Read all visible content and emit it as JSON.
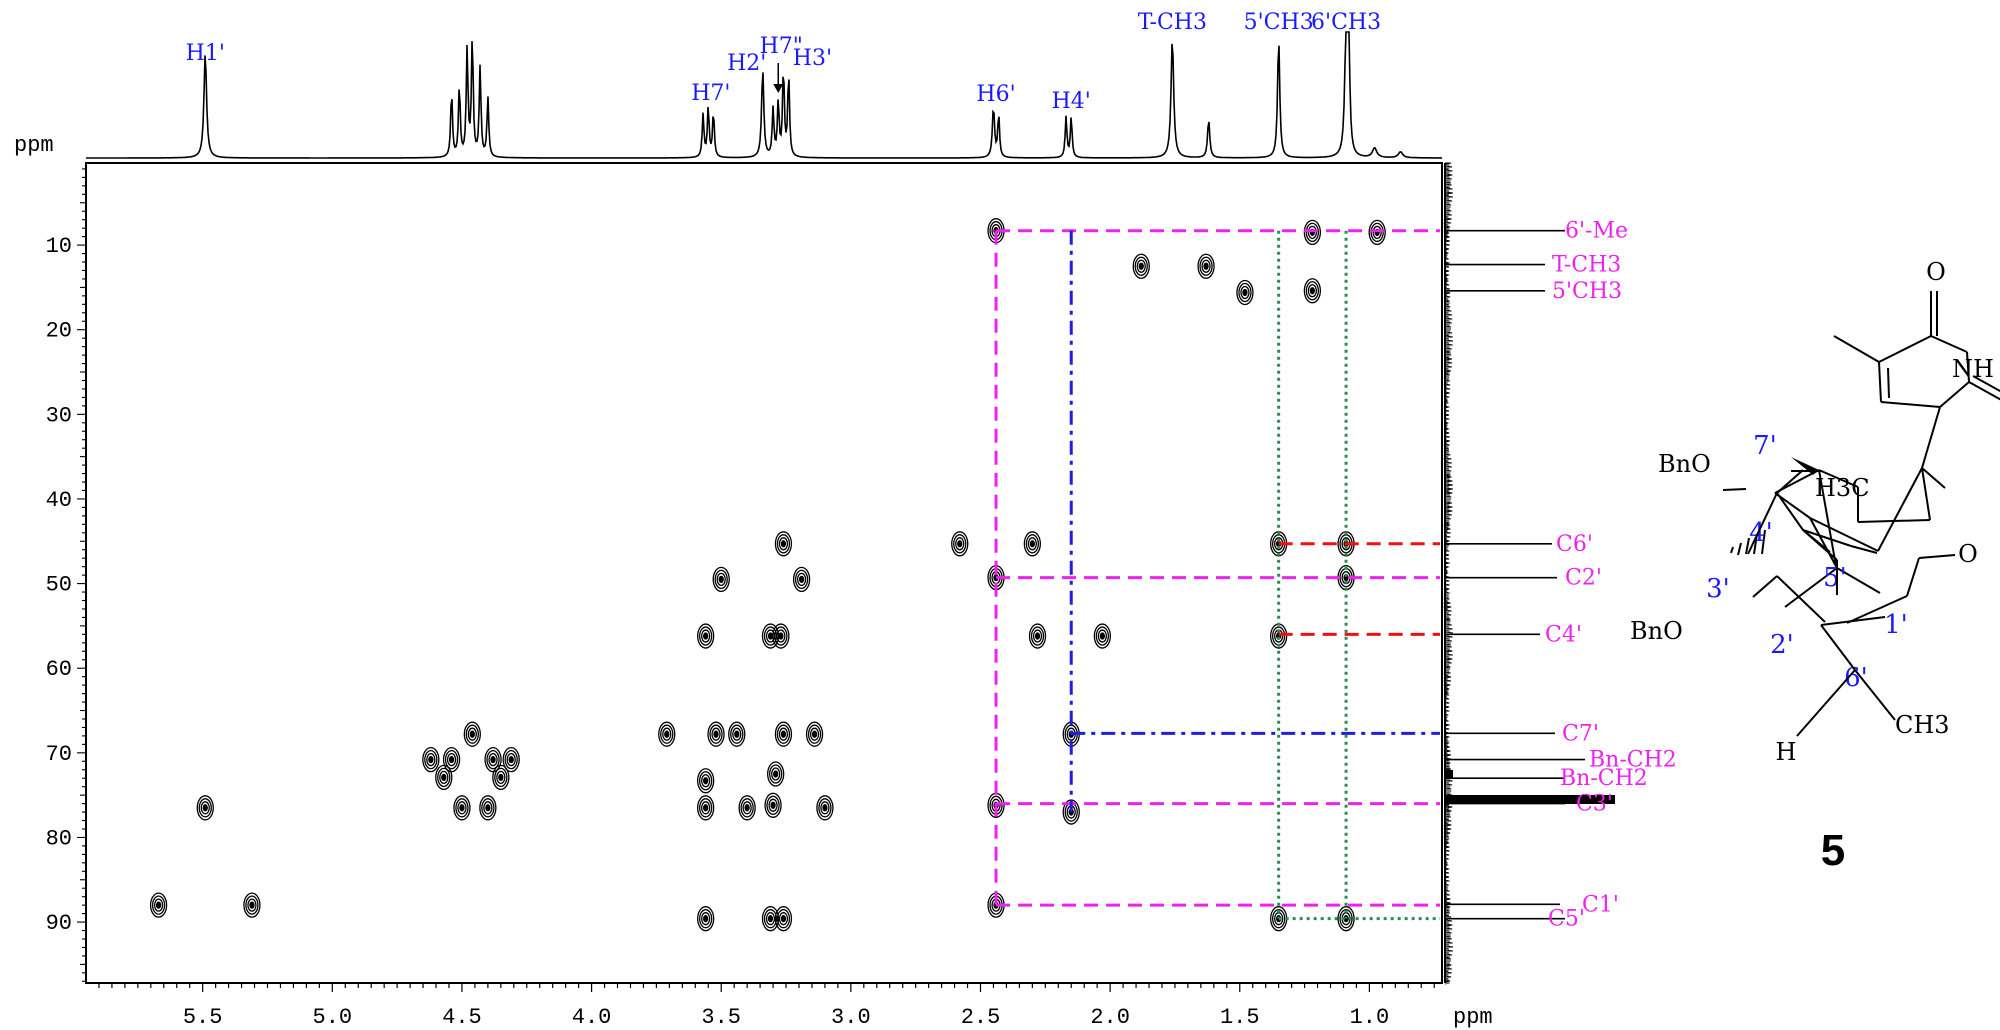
{
  "chart_data": {
    "type": "heatmap",
    "title": "",
    "x_axis": {
      "label": "ppm",
      "range": [
        5.95,
        0.72
      ],
      "reversed": true,
      "tick_labels": [
        "5.5",
        "5.0",
        "4.5",
        "4.0",
        "3.5",
        "3.0",
        "2.5",
        "2.0",
        "1.5",
        "1.0"
      ]
    },
    "y_axis": {
      "label": "ppm",
      "range": [
        0.3,
        97.2
      ],
      "reversed": true,
      "tick_labels": [
        "10",
        "20",
        "30",
        "40",
        "50",
        "60",
        "70",
        "80",
        "90"
      ]
    },
    "top_spectrum_labels": [
      {
        "text": "H1'",
        "ppm": 5.49
      },
      {
        "text": "H7'",
        "ppm": 3.54
      },
      {
        "text": "H2'",
        "ppm": 3.34
      },
      {
        "text": "H7\"",
        "ppm": 3.28
      },
      {
        "text": "H3'",
        "ppm": 3.21
      },
      {
        "text": "H6'",
        "ppm": 2.44
      },
      {
        "text": "H4'",
        "ppm": 2.15
      },
      {
        "text": "T-CH3",
        "ppm": 1.76
      },
      {
        "text": "5'CH3",
        "ppm": 1.35
      },
      {
        "text": "6'CH3",
        "ppm": 1.09
      }
    ],
    "carbon_labels": [
      {
        "text": "6'-Me",
        "ppm": 8.3
      },
      {
        "text": "T-CH3",
        "ppm": 12.3
      },
      {
        "text": "5'CH3",
        "ppm": 15.4
      },
      {
        "text": "C6'",
        "ppm": 45.3
      },
      {
        "text": "C2'",
        "ppm": 49.3
      },
      {
        "text": "C4'",
        "ppm": 56.0
      },
      {
        "text": "C7'",
        "ppm": 67.7
      },
      {
        "text": "Bn-CH2",
        "ppm": 70.8
      },
      {
        "text": "Bn-CH2",
        "ppm": 73.0
      },
      {
        "text": "C3'",
        "ppm": 76.0
      },
      {
        "text": "C1'",
        "ppm": 87.9
      },
      {
        "text": "C5'",
        "ppm": 89.6
      }
    ],
    "cross_peaks": [
      {
        "h": 2.44,
        "c": 8.3
      },
      {
        "h": 1.22,
        "c": 8.5
      },
      {
        "h": 0.97,
        "c": 8.5
      },
      {
        "h": 1.88,
        "c": 12.5
      },
      {
        "h": 1.63,
        "c": 12.5
      },
      {
        "h": 1.48,
        "c": 15.6
      },
      {
        "h": 1.22,
        "c": 15.4
      },
      {
        "h": 1.35,
        "c": 45.3
      },
      {
        "h": 1.09,
        "c": 45.3
      },
      {
        "h": 2.58,
        "c": 45.3
      },
      {
        "h": 2.3,
        "c": 45.3
      },
      {
        "h": 3.26,
        "c": 45.3
      },
      {
        "h": 2.44,
        "c": 49.3
      },
      {
        "h": 1.09,
        "c": 49.3
      },
      {
        "h": 3.5,
        "c": 49.5
      },
      {
        "h": 3.19,
        "c": 49.5
      },
      {
        "h": 3.56,
        "c": 56.2
      },
      {
        "h": 3.31,
        "c": 56.2
      },
      {
        "h": 3.27,
        "c": 56.2
      },
      {
        "h": 2.28,
        "c": 56.2
      },
      {
        "h": 2.03,
        "c": 56.2
      },
      {
        "h": 1.35,
        "c": 56.2
      },
      {
        "h": 4.46,
        "c": 67.8
      },
      {
        "h": 3.71,
        "c": 67.8
      },
      {
        "h": 3.52,
        "c": 67.8
      },
      {
        "h": 3.44,
        "c": 67.8
      },
      {
        "h": 3.26,
        "c": 67.8
      },
      {
        "h": 3.14,
        "c": 67.8
      },
      {
        "h": 2.15,
        "c": 67.8
      },
      {
        "h": 4.62,
        "c": 70.8
      },
      {
        "h": 4.54,
        "c": 70.8
      },
      {
        "h": 4.38,
        "c": 70.8
      },
      {
        "h": 4.31,
        "c": 70.8
      },
      {
        "h": 4.57,
        "c": 72.9
      },
      {
        "h": 4.35,
        "c": 72.9
      },
      {
        "h": 3.56,
        "c": 73.3
      },
      {
        "h": 3.29,
        "c": 72.5
      },
      {
        "h": 5.49,
        "c": 76.5
      },
      {
        "h": 4.5,
        "c": 76.5
      },
      {
        "h": 4.4,
        "c": 76.5
      },
      {
        "h": 3.56,
        "c": 76.5
      },
      {
        "h": 3.4,
        "c": 76.5
      },
      {
        "h": 3.3,
        "c": 76.2
      },
      {
        "h": 3.1,
        "c": 76.5
      },
      {
        "h": 2.44,
        "c": 76.2
      },
      {
        "h": 2.15,
        "c": 77.0
      },
      {
        "h": 5.67,
        "c": 88.0
      },
      {
        "h": 5.31,
        "c": 88.0
      },
      {
        "h": 2.44,
        "c": 88.0
      },
      {
        "h": 3.56,
        "c": 89.6
      },
      {
        "h": 3.31,
        "c": 89.6
      },
      {
        "h": 3.26,
        "c": 89.6
      },
      {
        "h": 1.35,
        "c": 89.6
      },
      {
        "h": 1.09,
        "c": 89.6
      }
    ],
    "correlation_lines": [
      {
        "kind": "magenta-dashed",
        "h": 2.44,
        "c_range": [
          8.3,
          88.0
        ],
        "to_carbons": [
          8.3,
          49.3,
          76.0,
          88.0
        ]
      },
      {
        "kind": "blue-dashdot",
        "h": 2.15,
        "c_range": [
          8.3,
          77.0
        ],
        "to_carbons": [
          67.7
        ]
      },
      {
        "kind": "green-dotted",
        "h": 1.35,
        "c_range": [
          8.3,
          89.6
        ],
        "to_carbons": [
          89.6
        ]
      },
      {
        "kind": "green-dotted",
        "h": 1.09,
        "c_range": [
          8.3,
          89.6
        ],
        "to_carbons": []
      },
      {
        "kind": "red-dashed",
        "h": 1.35,
        "to_carbons": [
          56.0
        ]
      },
      {
        "kind": "red-dashed",
        "h": 1.09,
        "to_carbons": [
          45.3
        ]
      }
    ]
  },
  "structure": {
    "compound_number": "5",
    "atom_labels": [
      {
        "text": "O"
      },
      {
        "text": "NH"
      },
      {
        "text": "O"
      },
      {
        "text": "BnO"
      },
      {
        "text": "7'"
      },
      {
        "text": "H3C"
      },
      {
        "text": "4'"
      },
      {
        "text": "5'"
      },
      {
        "text": "O"
      },
      {
        "text": "3'"
      },
      {
        "text": "BnO"
      },
      {
        "text": "2'"
      },
      {
        "text": "1'"
      },
      {
        "text": "6'"
      },
      {
        "text": "CH3"
      },
      {
        "text": "H"
      }
    ]
  },
  "colors": {
    "label_blue": "#1a1aff",
    "label_magenta": "#ee22ee",
    "line_magenta": "#ee22ee",
    "line_blue": "#1f1fdd",
    "line_green": "#2e8b57",
    "line_red": "#ee1111"
  }
}
